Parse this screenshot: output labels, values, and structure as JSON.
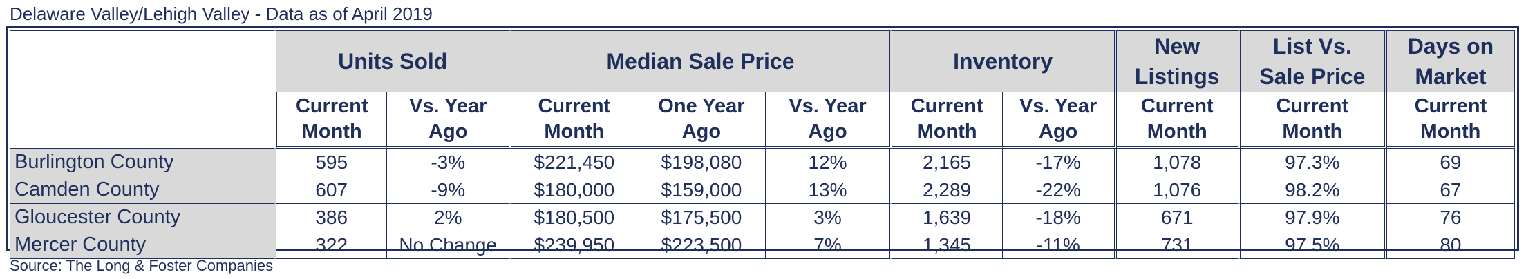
{
  "title": "Delaware Valley/Lehigh Valley - Data as of April 2019",
  "source": "Source: The Long & Foster Companies",
  "groups": {
    "units_sold": "Units Sold",
    "median_sale_price": "Median Sale Price",
    "inventory": "Inventory",
    "new_listings_line1": "New",
    "new_listings_line2": "Listings",
    "list_vs_sale_line1": "List Vs.",
    "list_vs_sale_line2": "Sale Price",
    "days_on_market_line1": "Days on",
    "days_on_market_line2": "Market"
  },
  "subheaders": {
    "current_line1": "Current",
    "current_line2": "Month",
    "vs_year_line1": "Vs. Year",
    "vs_year_line2": "Ago",
    "one_year_line1": "One Year",
    "one_year_line2": "Ago"
  },
  "rows": [
    {
      "county": "Burlington County",
      "units_current": "595",
      "units_vs_year": "-3%",
      "price_current": "$221,450",
      "price_one_year": "$198,080",
      "price_vs_year": "12%",
      "inventory_current": "2,165",
      "inventory_vs_year": "-17%",
      "new_listings": "1,078",
      "list_vs_sale": "97.3%",
      "days_on_market": "69"
    },
    {
      "county": "Camden County",
      "units_current": "607",
      "units_vs_year": "-9%",
      "price_current": "$180,000",
      "price_one_year": "$159,000",
      "price_vs_year": "13%",
      "inventory_current": "2,289",
      "inventory_vs_year": "-22%",
      "new_listings": "1,076",
      "list_vs_sale": "98.2%",
      "days_on_market": "67"
    },
    {
      "county": "Gloucester County",
      "units_current": "386",
      "units_vs_year": "2%",
      "price_current": "$180,500",
      "price_one_year": "$175,500",
      "price_vs_year": "3%",
      "inventory_current": "1,639",
      "inventory_vs_year": "-18%",
      "new_listings": "671",
      "list_vs_sale": "97.9%",
      "days_on_market": "76"
    },
    {
      "county": "Mercer County",
      "units_current": "322",
      "units_vs_year": "No Change",
      "price_current": "$239,950",
      "price_one_year": "$223,500",
      "price_vs_year": "7%",
      "inventory_current": "1,345",
      "inventory_vs_year": "-11%",
      "new_listings": "731",
      "list_vs_sale": "97.5%",
      "days_on_market": "80"
    }
  ]
}
